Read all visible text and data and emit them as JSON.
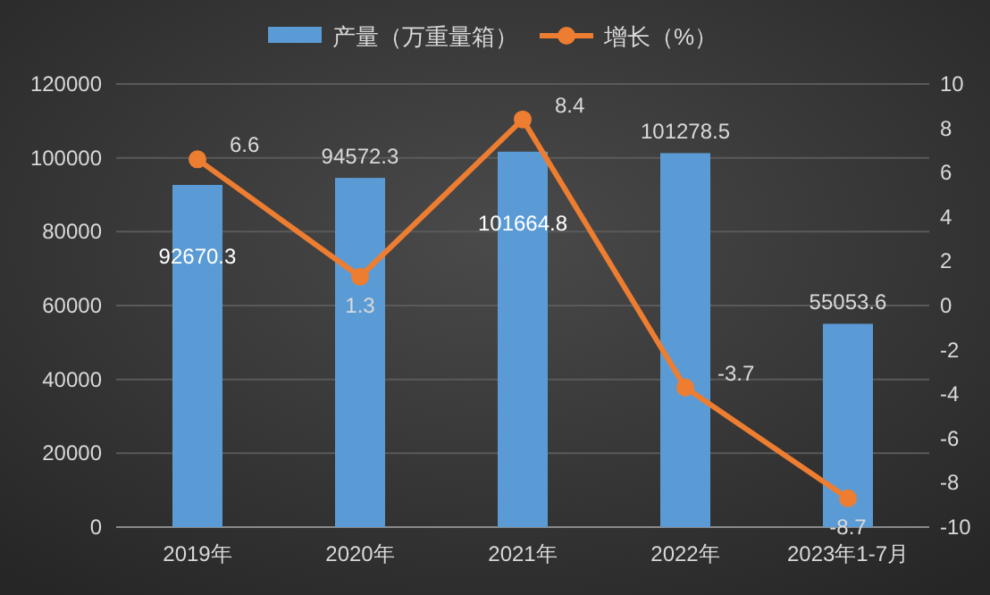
{
  "chart_data": {
    "type": "bar",
    "categories": [
      "2019年",
      "2020年",
      "2021年",
      "2022年",
      "2023年1-7月"
    ],
    "series": [
      {
        "name": "产量（万重量箱）",
        "type": "bar",
        "color": "#5b9bd5",
        "values": [
          92670.3,
          94572.3,
          101664.8,
          101278.5,
          55053.6
        ]
      },
      {
        "name": "增长（%）",
        "type": "line",
        "axis": "y2",
        "color": "#ed7d31",
        "marker": "circle",
        "values": [
          6.6,
          1.3,
          8.4,
          -3.7,
          -8.7
        ]
      }
    ],
    "ylim": [
      0,
      120000
    ],
    "yticks": [
      0,
      20000,
      40000,
      60000,
      80000,
      100000,
      120000
    ],
    "y2lim": [
      -10,
      10
    ],
    "y2ticks": [
      -10,
      -8,
      -6,
      -4,
      -2,
      0,
      2,
      4,
      6,
      8,
      10
    ],
    "grid": "y",
    "legend": "top",
    "data_labels": true
  }
}
